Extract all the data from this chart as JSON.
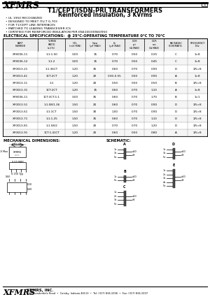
{
  "title1": "T1/CEPT/ISDN-PRI TRANSFORMERS",
  "title2": "Reinforced Insulation, 3 KVrms",
  "company": "XFMRS",
  "page_num": "1",
  "bullets": [
    "UL 1950 RECOGNIZED",
    "DESIGNED TO MEET ITU-T G.703",
    "FOR T1/CEPT LINE INTERFACES",
    "MATCHED TO LEADING TRANSCEIVER ICS",
    "CERTIFIED FOR REINFORCED INSULATION PER EN41003/EN60950"
  ],
  "elec_spec_title": "ELECTRICAL SPECIFICATIONS:  @ 25°C-OPERATING TEMPERATURE 0°C TO 70°C",
  "col_headers": [
    "PART\nNUMBER",
    "TURNS\nRATIO\n(±1%)",
    "OCL\n(mH MIN)",
    "Cww\n(pF MAX)",
    "Lk\n(μH MAX)",
    "DCR\npri\n(Ω MAX)",
    "DCR\nsec\n(Ω MAX)",
    "PACKAGE/\nSCHEMATIC",
    "FREQUENCY\nkHz"
  ],
  "table_data": [
    [
      "XF8006-11",
      "1:1:1.50",
      ".500",
      "15",
      "0.70",
      "0.50",
      "0.35",
      "C",
      "1>8"
    ],
    [
      "XF8006-12",
      "1:1:2",
      ".500",
      "15",
      "0.70",
      "0.50",
      "0.45",
      "C",
      "1>8"
    ],
    [
      "XF0013-21",
      "1:1.36CT",
      "1.20",
      "35",
      "0.60",
      "0.70",
      "0.90",
      "D",
      "1/5>8"
    ],
    [
      "XF0013-41",
      "1CT:2CT",
      "1.20",
      "20",
      "0.30-0.55",
      "0.50",
      "0.90",
      "A",
      "1>8"
    ],
    [
      "XF0013-11",
      "1:1",
      "1.20",
      "20",
      "0.50",
      "0.50",
      "0.50",
      "B",
      "1/5>8"
    ],
    [
      "XF0013-31",
      "1CT:2CT",
      "1.20",
      "15",
      "0.60",
      "0.70",
      "1.10",
      "A",
      "1>8"
    ],
    [
      "XF8006-11",
      "1CT:3CT:1:1",
      ".500",
      "35",
      "0.60",
      "0.70",
      "1.70",
      "B",
      "1>1"
    ],
    [
      "XF0013-51",
      "1:1.08/1.36",
      "1.50",
      "20",
      "0.60",
      "0.70",
      "0.90",
      "D",
      "1/5>8"
    ],
    [
      "XF0013-61",
      "1:1:1CT",
      "1.50",
      "30",
      "1.00",
      "0.70",
      "0.90",
      "D",
      "1/5>8"
    ],
    [
      "XF0013-71",
      "1:1:1.25",
      "1.50",
      "35",
      "0.60",
      "0.70",
      "1.10",
      "D",
      "1/5>8"
    ],
    [
      "XF0013-81",
      "1:1.58/2",
      "1.50",
      "20",
      "0.70",
      "0.70",
      "1.20",
      "D",
      "1/5>8"
    ],
    [
      "XF0013-91",
      "1CT:1.41CT",
      "1.20",
      "20",
      "0.60",
      "0.50",
      "0.80",
      "A",
      "1/5>8"
    ]
  ],
  "mech_title": "MECHANICAL DIMENSIONS:",
  "schem_title": "SCHEMATIC:",
  "footer_company": "XFMRS",
  "footer_text": "XFMRS, INC.",
  "footer_addr": "1940 Landerdale Road  •  Carsby, Indiana 46113  •  Tel: (317) 834-1006  •  Fax: (317) 834-1007",
  "bg_color": "#ffffff"
}
